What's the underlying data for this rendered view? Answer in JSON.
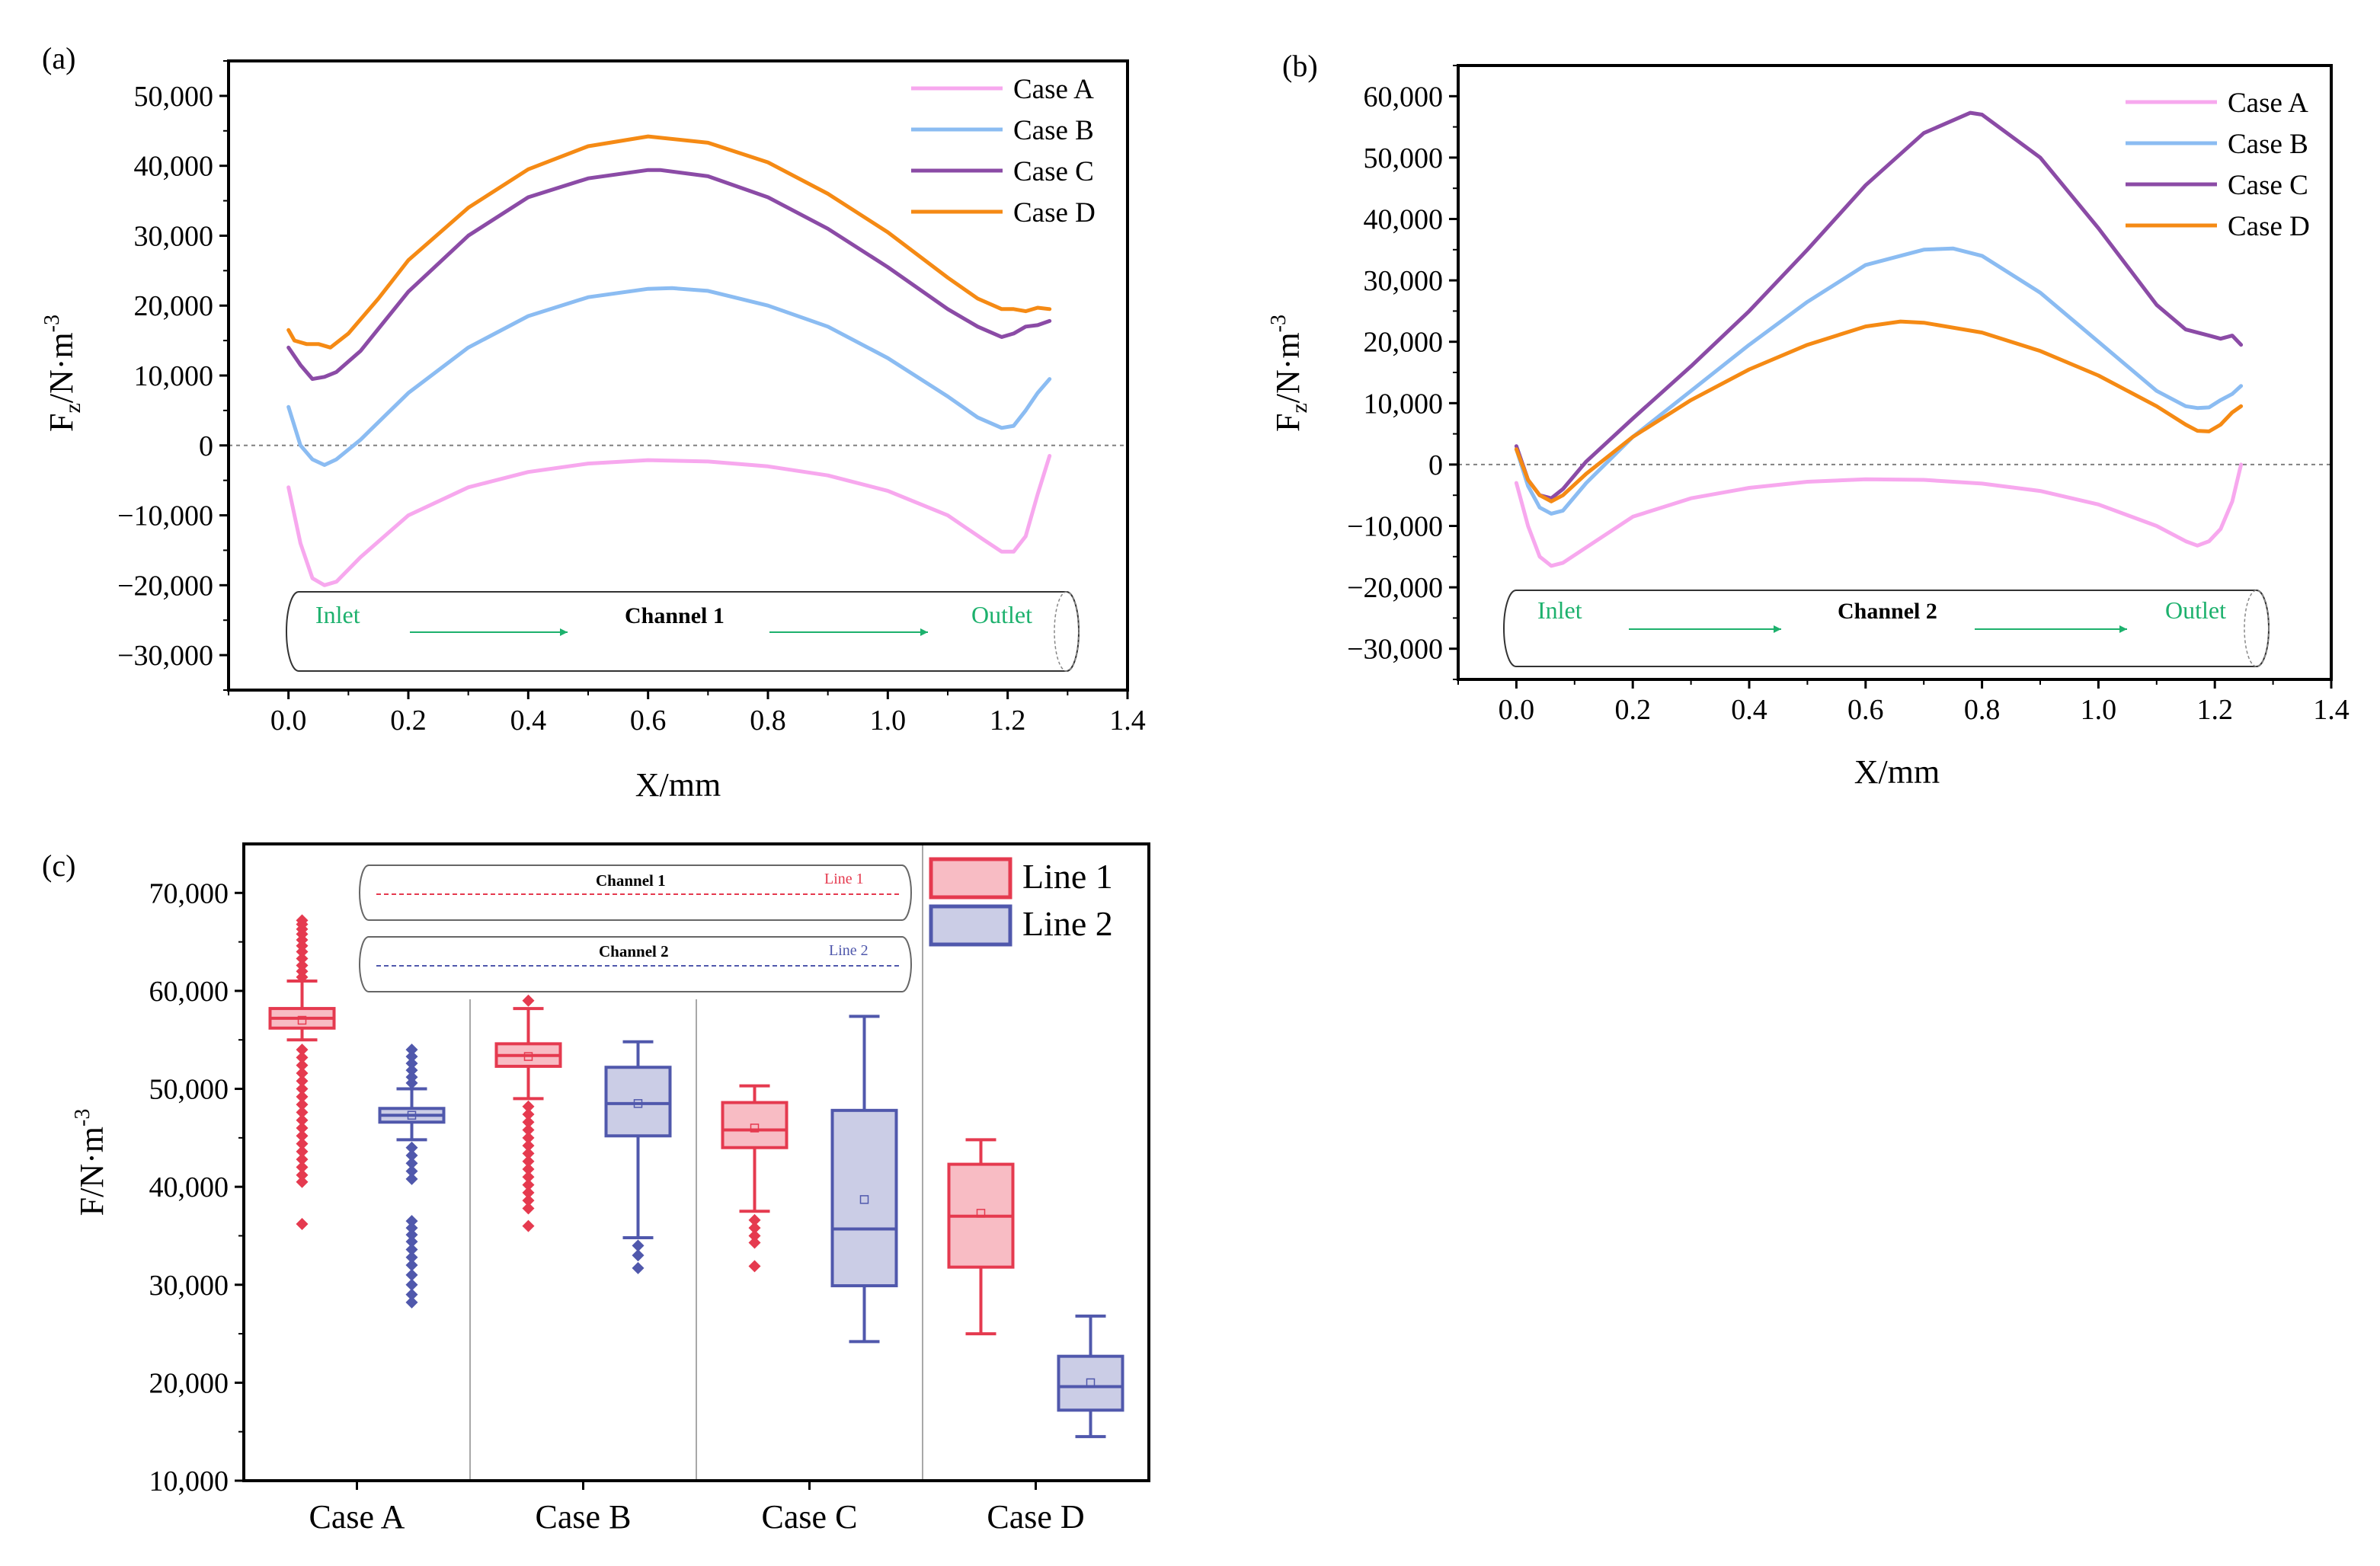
{
  "colors": {
    "case_a": "#f7a8ee",
    "case_b": "#8bbcf2",
    "case_c": "#8b4ba6",
    "case_d": "#f58a14",
    "line1_stroke": "#e53a4f",
    "line1_fill": "#f8bcc4",
    "line2_stroke": "#5058ac",
    "line2_fill": "#cbcde6",
    "flow": "#1db16d"
  },
  "panel_a": {
    "letter": "(a)",
    "channel_label": "Channel 1",
    "inlet_label": "Inlet",
    "outlet_label": "Outlet"
  },
  "panel_b": {
    "letter": "(b)",
    "channel_label": "Channel 2",
    "inlet_label": "Inlet",
    "outlet_label": "Outlet"
  },
  "panel_c": {
    "letter": "(c)",
    "channel1_label": "Channel 1",
    "channel2_label": "Channel 2",
    "line1_tag": "Line 1",
    "line2_tag": "Line 2"
  },
  "chart_data": [
    {
      "id": "a",
      "type": "line",
      "title": "",
      "xlabel": "X/mm",
      "ylabel_main": "F",
      "ylabel_sub": "z",
      "ylabel_rest": "/N·m",
      "ylabel_sup": "-3",
      "xlim": [
        -0.1,
        1.4
      ],
      "ylim": [
        -35000,
        55000
      ],
      "xticks": [
        0.0,
        0.2,
        0.4,
        0.6,
        0.8,
        1.0,
        1.2,
        1.4
      ],
      "xtick_labels": [
        "0.0",
        "0.2",
        "0.4",
        "0.6",
        "0.8",
        "1.0",
        "1.2",
        "1.4"
      ],
      "yticks": [
        -30000,
        -20000,
        -10000,
        0,
        10000,
        20000,
        30000,
        40000,
        50000
      ],
      "ytick_labels": [
        "−30,000",
        "−20,000",
        "−10,000",
        "0",
        "10,000",
        "20,000",
        "30,000",
        "40,000",
        "50,000"
      ],
      "zero_line": true,
      "legend_position": "top-right",
      "series": [
        {
          "name": "Case A",
          "x": [
            0.0,
            0.02,
            0.04,
            0.06,
            0.08,
            0.12,
            0.2,
            0.3,
            0.4,
            0.5,
            0.6,
            0.7,
            0.8,
            0.9,
            1.0,
            1.1,
            1.16,
            1.19,
            1.21,
            1.23,
            1.25,
            1.27
          ],
          "y": [
            -6000,
            -14000,
            -19000,
            -20000,
            -19500,
            -16000,
            -10000,
            -6000,
            -3800,
            -2600,
            -2100,
            -2300,
            -3000,
            -4300,
            -6500,
            -10000,
            -13500,
            -15200,
            -15200,
            -13000,
            -7000,
            -1500
          ]
        },
        {
          "name": "Case B",
          "x": [
            0.0,
            0.02,
            0.04,
            0.06,
            0.08,
            0.12,
            0.2,
            0.3,
            0.4,
            0.5,
            0.6,
            0.64,
            0.7,
            0.8,
            0.9,
            1.0,
            1.1,
            1.15,
            1.19,
            1.21,
            1.23,
            1.25,
            1.27
          ],
          "y": [
            5500,
            0,
            -2000,
            -2800,
            -2000,
            800,
            7500,
            14000,
            18500,
            21200,
            22400,
            22500,
            22100,
            20000,
            17000,
            12500,
            7000,
            4000,
            2500,
            2800,
            5000,
            7500,
            9500
          ]
        },
        {
          "name": "Case C",
          "x": [
            0.0,
            0.02,
            0.04,
            0.06,
            0.08,
            0.12,
            0.2,
            0.3,
            0.4,
            0.5,
            0.6,
            0.62,
            0.7,
            0.8,
            0.9,
            1.0,
            1.1,
            1.15,
            1.19,
            1.21,
            1.23,
            1.25,
            1.27
          ],
          "y": [
            14000,
            11500,
            9500,
            9800,
            10500,
            13500,
            22000,
            30000,
            35500,
            38200,
            39400,
            39400,
            38500,
            35500,
            31000,
            25500,
            19500,
            17000,
            15500,
            16000,
            17000,
            17200,
            17800
          ]
        },
        {
          "name": "Case D",
          "x": [
            0.0,
            0.01,
            0.03,
            0.05,
            0.07,
            0.1,
            0.15,
            0.2,
            0.3,
            0.4,
            0.5,
            0.6,
            0.7,
            0.8,
            0.9,
            1.0,
            1.1,
            1.15,
            1.19,
            1.21,
            1.23,
            1.25,
            1.27
          ],
          "y": [
            16500,
            15000,
            14500,
            14500,
            14000,
            16000,
            21000,
            26500,
            34000,
            39500,
            42800,
            44200,
            43300,
            40500,
            36000,
            30500,
            24000,
            21000,
            19500,
            19500,
            19200,
            19700,
            19500
          ]
        }
      ]
    },
    {
      "id": "b",
      "type": "line",
      "title": "",
      "xlabel": "X/mm",
      "ylabel_main": "F",
      "ylabel_sub": "z",
      "ylabel_rest": "/N·m",
      "ylabel_sup": "-3",
      "xlim": [
        -0.1,
        1.4
      ],
      "ylim": [
        -35000,
        65000
      ],
      "xticks": [
        0.0,
        0.2,
        0.4,
        0.6,
        0.8,
        1.0,
        1.2,
        1.4
      ],
      "xtick_labels": [
        "0.0",
        "0.2",
        "0.4",
        "0.6",
        "0.8",
        "1.0",
        "1.2",
        "1.4"
      ],
      "yticks": [
        -30000,
        -20000,
        -10000,
        0,
        10000,
        20000,
        30000,
        40000,
        50000,
        60000
      ],
      "ytick_labels": [
        "−30,000",
        "−20,000",
        "−10,000",
        "0",
        "10,000",
        "20,000",
        "30,000",
        "40,000",
        "50,000",
        "60,000"
      ],
      "zero_line": true,
      "legend_position": "top-right",
      "series": [
        {
          "name": "Case A",
          "x": [
            0.0,
            0.02,
            0.04,
            0.06,
            0.08,
            0.12,
            0.2,
            0.3,
            0.4,
            0.5,
            0.6,
            0.7,
            0.8,
            0.9,
            1.0,
            1.1,
            1.15,
            1.17,
            1.19,
            1.21,
            1.23,
            1.245
          ],
          "y": [
            -3000,
            -10000,
            -15000,
            -16500,
            -16000,
            -13500,
            -8500,
            -5500,
            -3800,
            -2800,
            -2400,
            -2500,
            -3100,
            -4300,
            -6500,
            -10000,
            -12500,
            -13200,
            -12500,
            -10500,
            -6000,
            0
          ]
        },
        {
          "name": "Case B",
          "x": [
            0.0,
            0.02,
            0.04,
            0.06,
            0.08,
            0.12,
            0.2,
            0.3,
            0.4,
            0.5,
            0.6,
            0.7,
            0.75,
            0.8,
            0.9,
            1.0,
            1.1,
            1.15,
            1.17,
            1.19,
            1.21,
            1.23,
            1.245
          ],
          "y": [
            2500,
            -3500,
            -7000,
            -8000,
            -7500,
            -3000,
            4500,
            12000,
            19500,
            26500,
            32500,
            35000,
            35200,
            34000,
            28000,
            20000,
            12000,
            9500,
            9200,
            9300,
            10500,
            11500,
            12800
          ]
        },
        {
          "name": "Case C",
          "x": [
            0.0,
            0.02,
            0.04,
            0.06,
            0.08,
            0.12,
            0.2,
            0.3,
            0.4,
            0.5,
            0.6,
            0.7,
            0.78,
            0.8,
            0.9,
            1.0,
            1.1,
            1.15,
            1.17,
            1.19,
            1.21,
            1.23,
            1.245
          ],
          "y": [
            3000,
            -2500,
            -5000,
            -5500,
            -4000,
            500,
            7500,
            16000,
            25000,
            35000,
            45500,
            54000,
            57300,
            57000,
            50000,
            38500,
            26000,
            22000,
            21500,
            21000,
            20500,
            21000,
            19500
          ]
        },
        {
          "name": "Case D",
          "x": [
            0.0,
            0.02,
            0.04,
            0.06,
            0.08,
            0.12,
            0.2,
            0.3,
            0.4,
            0.5,
            0.6,
            0.66,
            0.7,
            0.8,
            0.9,
            1.0,
            1.1,
            1.15,
            1.17,
            1.19,
            1.21,
            1.23,
            1.245
          ],
          "y": [
            2500,
            -2500,
            -5000,
            -6000,
            -5000,
            -1500,
            4500,
            10500,
            15500,
            19500,
            22500,
            23300,
            23100,
            21500,
            18500,
            14500,
            9500,
            6500,
            5500,
            5400,
            6500,
            8500,
            9500
          ]
        }
      ]
    },
    {
      "id": "c",
      "type": "box",
      "title": "",
      "xlabel": "",
      "ylabel": "F/N·m",
      "ylabel_sup": "-3",
      "ylim": [
        10000,
        75000
      ],
      "yticks": [
        10000,
        20000,
        30000,
        40000,
        50000,
        60000,
        70000
      ],
      "ytick_labels": [
        "10,000",
        "20,000",
        "30,000",
        "40,000",
        "50,000",
        "60,000",
        "70,000"
      ],
      "categories": [
        "Case A",
        "Case B",
        "Case C",
        "Case D"
      ],
      "legend_position": "top-right",
      "series": [
        {
          "name": "Line 1",
          "boxes": [
            {
              "whisker_low": 55000,
              "q1": 56200,
              "median": 57200,
              "q3": 58200,
              "whisker_high": 61000,
              "mean": 57000,
              "outliers": [
                67200,
                66800,
                66300,
                65800,
                65200,
                64600,
                64000,
                63300,
                62600,
                62000,
                61400,
                54000,
                53200,
                52400,
                51600,
                50800,
                50000,
                49200,
                48400,
                47600,
                46800,
                46000,
                45200,
                44400,
                43600,
                42800,
                42000,
                41200,
                40500,
                36200
              ]
            },
            {
              "whisker_low": 49000,
              "q1": 52300,
              "median": 53400,
              "q3": 54600,
              "whisker_high": 58200,
              "mean": 53300,
              "outliers": [
                59000,
                48200,
                47400,
                46600,
                45800,
                45000,
                44200,
                43400,
                42600,
                41800,
                41000,
                40200,
                39400,
                38600,
                37800,
                36000
              ]
            },
            {
              "whisker_low": 37500,
              "q1": 44000,
              "median": 45800,
              "q3": 48600,
              "whisker_high": 50300,
              "mean": 46000,
              "outliers": [
                36600,
                35800,
                35000,
                34300,
                31900
              ]
            },
            {
              "whisker_low": 25000,
              "q1": 31800,
              "median": 37000,
              "q3": 42300,
              "whisker_high": 44800,
              "mean": 37300,
              "outliers": []
            }
          ]
        },
        {
          "name": "Line 2",
          "boxes": [
            {
              "whisker_low": 44800,
              "q1": 46600,
              "median": 47300,
              "q3": 48000,
              "whisker_high": 50000,
              "mean": 47300,
              "outliers": [
                54000,
                53300,
                52600,
                51900,
                51200,
                50600,
                44000,
                43200,
                42400,
                41600,
                40800,
                36500,
                35800,
                35100,
                34400,
                33600,
                32800,
                32000,
                31000,
                30000,
                29000,
                28200
              ]
            },
            {
              "whisker_low": 34800,
              "q1": 45200,
              "median": 48500,
              "q3": 52200,
              "whisker_high": 54800,
              "mean": 48500,
              "outliers": [
                34000,
                33000,
                31700
              ]
            },
            {
              "whisker_low": 24200,
              "q1": 29900,
              "median": 35700,
              "q3": 47800,
              "whisker_high": 57400,
              "mean": 38700,
              "outliers": []
            },
            {
              "whisker_low": 14500,
              "q1": 17200,
              "median": 19600,
              "q3": 22700,
              "whisker_high": 26800,
              "mean": 20000,
              "outliers": []
            }
          ]
        }
      ]
    }
  ]
}
